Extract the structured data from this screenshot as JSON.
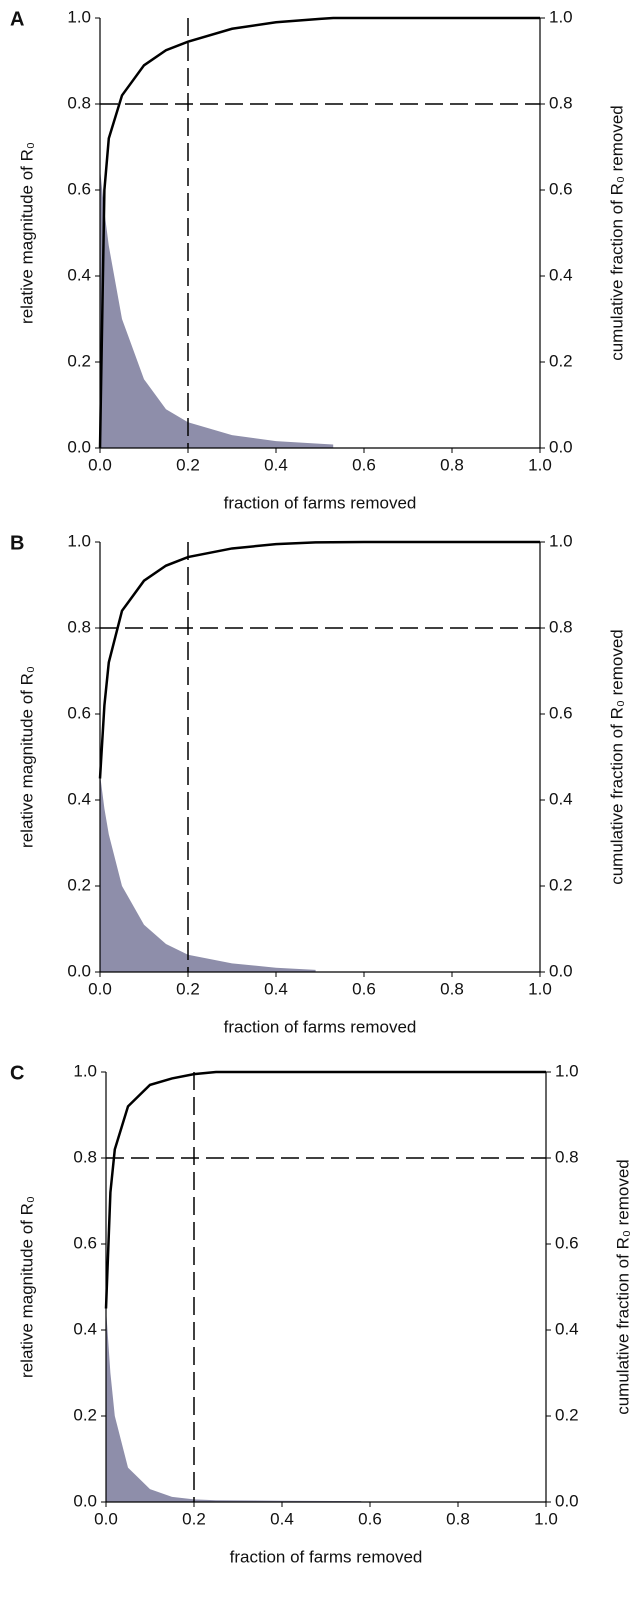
{
  "chart_data": [
    {
      "type": "line",
      "panel_label": "A",
      "xlabel": "fraction of farms removed",
      "ylabel": "relative magnitude of R₀",
      "y2label": "cumulative fraction of R₀ removed",
      "x": [
        0,
        0.01,
        0.02,
        0.05,
        0.1,
        0.15,
        0.2,
        0.3,
        0.4,
        0.5,
        0.53,
        0.6,
        0.8,
        1.0
      ],
      "series": [
        {
          "kind": "area",
          "color": "#8e8eaa",
          "values": [
            0.65,
            0.55,
            0.47,
            0.3,
            0.16,
            0.09,
            0.06,
            0.03,
            0.016,
            0.01,
            0.008,
            null,
            null,
            null
          ]
        },
        {
          "kind": "line",
          "axis": "y2",
          "color": "#000000",
          "values": [
            0.0,
            0.6,
            0.72,
            0.82,
            0.89,
            0.925,
            0.945,
            0.975,
            0.99,
            0.998,
            1.0,
            1.0,
            1.0,
            1.0
          ]
        }
      ],
      "xlim": [
        0,
        1
      ],
      "xticks": [
        {
          "value": 0,
          "label": "0.0"
        },
        0.2,
        0.4,
        0.6,
        0.8,
        {
          "value": 1,
          "label": "1.0"
        }
      ],
      "ylim": [
        0,
        1
      ],
      "yticks": [
        {
          "value": 0,
          "label": "0.0"
        },
        0.2,
        0.4,
        0.6,
        0.8,
        {
          "value": 1,
          "label": "1.0"
        }
      ],
      "y2lim": [
        0,
        1
      ],
      "y2ticks": [
        {
          "value": 0,
          "label": "0.0"
        },
        0.2,
        0.4,
        0.6,
        0.8,
        {
          "value": 1,
          "label": "1.0"
        }
      ],
      "reference_lines": {
        "x": 0.2,
        "y2": 0.8
      }
    },
    {
      "type": "line",
      "panel_label": "B",
      "xlabel": "fraction of farms removed",
      "ylabel": "relative magnitude of R₀",
      "y2label": "cumulative fraction of R₀ removed",
      "x": [
        0,
        0.01,
        0.02,
        0.05,
        0.1,
        0.15,
        0.2,
        0.3,
        0.4,
        0.49,
        0.6,
        0.8,
        1.0
      ],
      "series": [
        {
          "kind": "area",
          "color": "#8e8eaa",
          "values": [
            0.46,
            0.38,
            0.32,
            0.2,
            0.11,
            0.065,
            0.04,
            0.02,
            0.01,
            0.005,
            null,
            null,
            null
          ]
        },
        {
          "kind": "line",
          "axis": "y2",
          "color": "#000000",
          "values": [
            0.45,
            0.62,
            0.72,
            0.84,
            0.91,
            0.945,
            0.965,
            0.985,
            0.995,
            0.999,
            1.0,
            1.0,
            1.0
          ]
        }
      ],
      "xlim": [
        0,
        1
      ],
      "xticks": [
        {
          "value": 0,
          "label": "0.0"
        },
        0.2,
        0.4,
        0.6,
        0.8,
        {
          "value": 1,
          "label": "1.0"
        }
      ],
      "ylim": [
        0,
        1
      ],
      "yticks": [
        {
          "value": 0,
          "label": "0.0"
        },
        0.2,
        0.4,
        0.6,
        0.8,
        {
          "value": 1,
          "label": "1.0"
        }
      ],
      "y2lim": [
        0,
        1
      ],
      "y2ticks": [
        {
          "value": 0,
          "label": "0.0"
        },
        0.2,
        0.4,
        0.6,
        0.8,
        {
          "value": 1,
          "label": "1.0"
        }
      ],
      "reference_lines": {
        "x": 0.2,
        "y2": 0.8
      }
    },
    {
      "type": "line",
      "panel_label": "C",
      "xlabel": "fraction of farms removed",
      "ylabel": "relative magnitude of R₀",
      "y2label": "cumulative fraction of R₀ removed",
      "x": [
        0,
        0.01,
        0.02,
        0.05,
        0.1,
        0.15,
        0.2,
        0.25,
        0.4,
        0.58,
        0.8,
        1.0
      ],
      "series": [
        {
          "kind": "area",
          "color": "#8e8eaa",
          "values": [
            0.45,
            0.3,
            0.2,
            0.08,
            0.03,
            0.012,
            0.006,
            0.004,
            0.003,
            0.002,
            null,
            null
          ]
        },
        {
          "kind": "line",
          "axis": "y2",
          "color": "#000000",
          "values": [
            0.45,
            0.72,
            0.82,
            0.92,
            0.97,
            0.985,
            0.995,
            1.0,
            1.0,
            1.0,
            1.0,
            1.0
          ]
        }
      ],
      "xlim": [
        0,
        1
      ],
      "xticks": [
        {
          "value": 0,
          "label": "0.0"
        },
        0.2,
        0.4,
        0.6,
        0.8,
        {
          "value": 1,
          "label": "1.0"
        }
      ],
      "ylim": [
        0,
        1
      ],
      "yticks": [
        {
          "value": 0,
          "label": "0.0"
        },
        0.2,
        0.4,
        0.6,
        0.8,
        {
          "value": 1,
          "label": "1.0"
        }
      ],
      "y2lim": [
        0,
        1
      ],
      "y2ticks": [
        {
          "value": 0,
          "label": "0.0"
        },
        0.2,
        0.4,
        0.6,
        0.8,
        {
          "value": 1,
          "label": "1.0"
        }
      ],
      "reference_lines": {
        "x": 0.2,
        "y2": 0.8
      }
    }
  ]
}
